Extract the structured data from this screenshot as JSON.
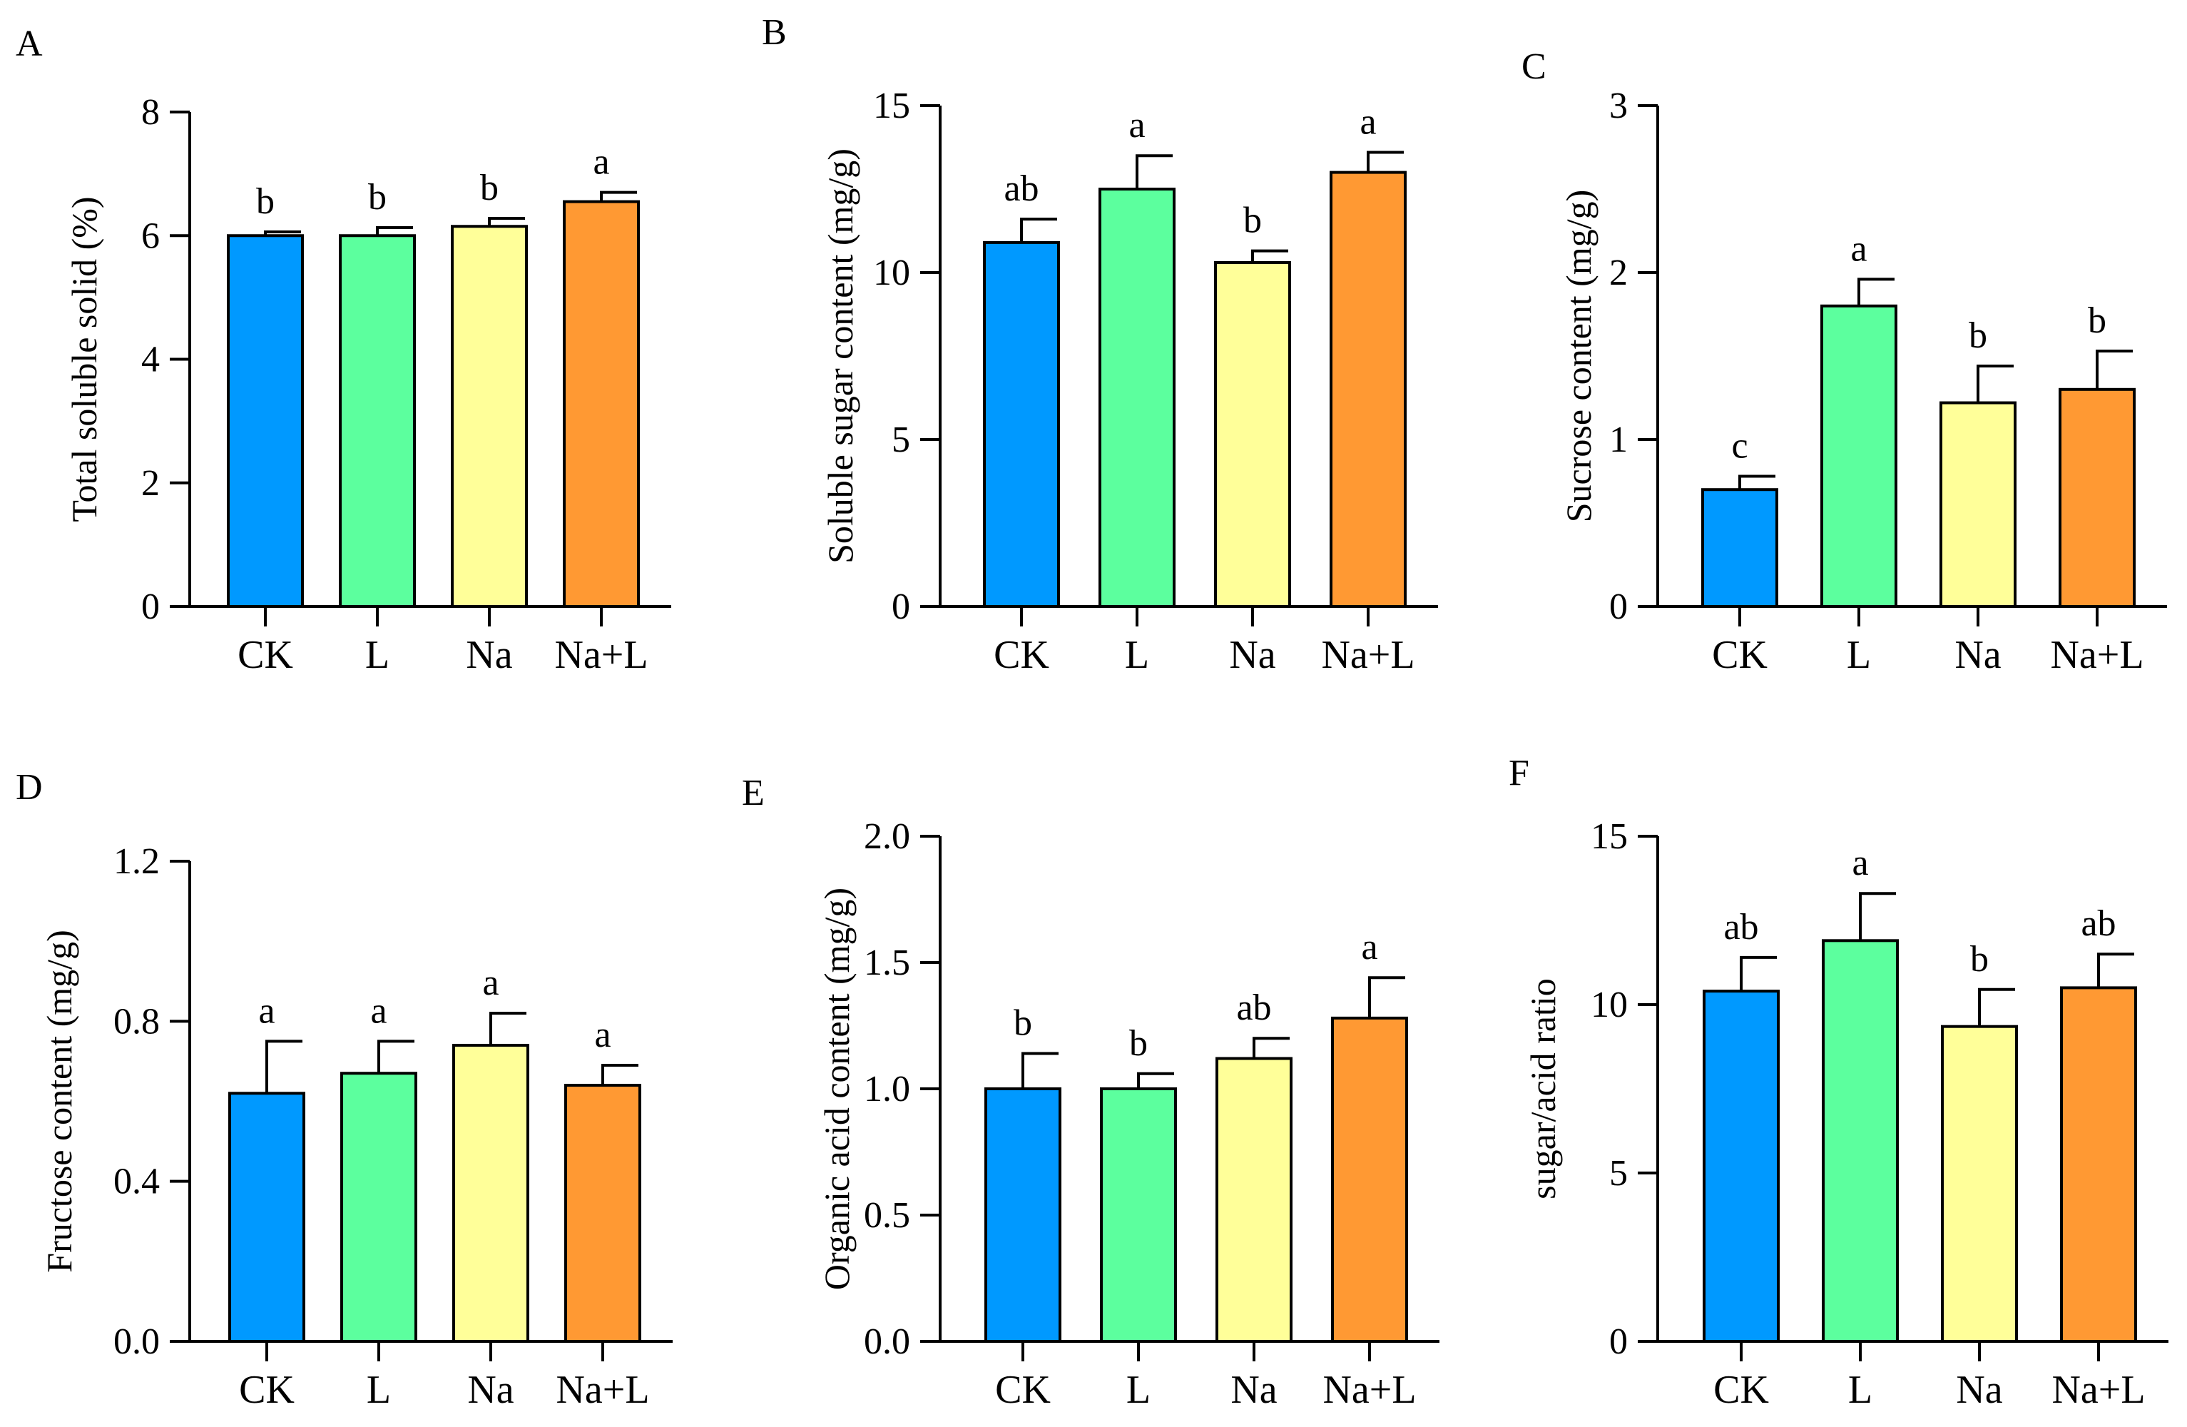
{
  "colors": {
    "CK": "#0099ff",
    "L": "#5cff9e",
    "Na": "#ffff99",
    "Na+L": "#ff9933",
    "axis": "#000000"
  },
  "chart_data": [
    {
      "panel": "A",
      "type": "bar",
      "categories": [
        "CK",
        "L",
        "Na",
        "Na+L"
      ],
      "values": [
        6.0,
        6.0,
        6.15,
        6.55
      ],
      "errors": [
        0.06,
        0.13,
        0.13,
        0.15
      ],
      "letters": [
        "b",
        "b",
        "b",
        "a"
      ],
      "ylabel": "Total soluble solid (%)",
      "ylim": [
        0,
        8
      ],
      "yticks": [
        0,
        2,
        4,
        6,
        8
      ],
      "ytick_labels": [
        "0",
        "2",
        "4",
        "6",
        "8"
      ]
    },
    {
      "panel": "B",
      "type": "bar",
      "categories": [
        "CK",
        "L",
        "Na",
        "Na+L"
      ],
      "values": [
        10.9,
        12.5,
        10.3,
        13.0
      ],
      "errors": [
        0.7,
        1.0,
        0.35,
        0.6
      ],
      "letters": [
        "ab",
        "a",
        "b",
        "a"
      ],
      "ylabel": "Soluble sugar content (mg/g)",
      "ylim": [
        0,
        15
      ],
      "yticks": [
        0,
        5,
        10,
        15
      ],
      "ytick_labels": [
        "0",
        "5",
        "10",
        "15"
      ]
    },
    {
      "panel": "C",
      "type": "bar",
      "categories": [
        "CK",
        "L",
        "Na",
        "Na+L"
      ],
      "values": [
        0.7,
        1.8,
        1.22,
        1.3
      ],
      "errors": [
        0.08,
        0.16,
        0.22,
        0.23
      ],
      "letters": [
        "c",
        "a",
        "b",
        "b"
      ],
      "ylabel": "Sucrose content (mg/g)",
      "ylim": [
        0,
        3
      ],
      "yticks": [
        0,
        1,
        2,
        3
      ],
      "ytick_labels": [
        "0",
        "1",
        "2",
        "3"
      ]
    },
    {
      "panel": "D",
      "type": "bar",
      "categories": [
        "CK",
        "L",
        "Na",
        "Na+L"
      ],
      "values": [
        0.62,
        0.67,
        0.74,
        0.64
      ],
      "errors": [
        0.13,
        0.08,
        0.08,
        0.05
      ],
      "letters": [
        "a",
        "a",
        "a",
        "a"
      ],
      "ylabel": "Fructose content (mg/g)",
      "ylim": [
        0,
        1.2
      ],
      "yticks": [
        0,
        0.4,
        0.8,
        1.2
      ],
      "ytick_labels": [
        "0.0",
        "0.4",
        "0.8",
        "1.2"
      ]
    },
    {
      "panel": "E",
      "type": "bar",
      "categories": [
        "CK",
        "L",
        "Na",
        "Na+L"
      ],
      "values": [
        1.0,
        1.0,
        1.12,
        1.28
      ],
      "errors": [
        0.14,
        0.06,
        0.08,
        0.16
      ],
      "letters": [
        "b",
        "b",
        "ab",
        "a"
      ],
      "ylabel": "Organic acid content (mg/g)",
      "ylim": [
        0,
        2.0
      ],
      "yticks": [
        0,
        0.5,
        1.0,
        1.5,
        2.0
      ],
      "ytick_labels": [
        "0.0",
        "0.5",
        "1.0",
        "1.5",
        "2.0"
      ]
    },
    {
      "panel": "F",
      "type": "bar",
      "categories": [
        "CK",
        "L",
        "Na",
        "Na+L"
      ],
      "values": [
        10.4,
        11.9,
        9.35,
        10.5
      ],
      "errors": [
        1.0,
        1.4,
        1.1,
        1.0
      ],
      "letters": [
        "ab",
        "a",
        "b",
        "ab"
      ],
      "ylabel": "sugar/acid ratio",
      "ylim": [
        0,
        15
      ],
      "yticks": [
        0,
        5,
        10,
        15
      ],
      "ytick_labels": [
        "0",
        "5",
        "10",
        "15"
      ]
    }
  ]
}
